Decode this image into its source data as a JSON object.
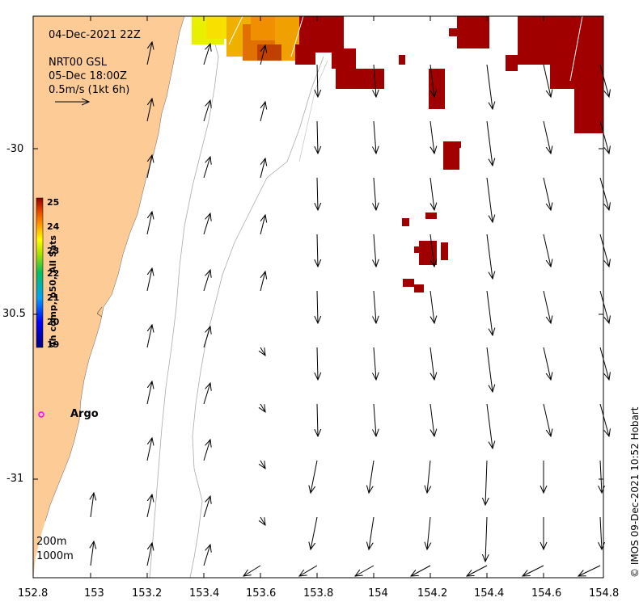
{
  "map": {
    "timestamp": "04-Dec-2021 22Z",
    "currents_source": "NRT00 GSL",
    "currents_time": "05-Dec 18:00Z",
    "vector_scale_label": "0.5m/s (1kt 6h)",
    "marker_label": "Argo",
    "depth_labels": [
      "200m",
      "1000m"
    ],
    "credit": "© IMOS 09-Dec-2021 10:52 Hobart",
    "x_ticks": [
      "152.8",
      "153",
      "153.2",
      "153.4",
      "153.6",
      "153.8",
      "154",
      "154.2",
      "154.4",
      "154.6",
      "154.8"
    ],
    "y_ticks": [
      "-30",
      "30.5",
      "-31"
    ]
  },
  "colorbar": {
    "title": "4h comp, p50, All Sats",
    "ticks": [
      "25",
      "24",
      "23",
      "22",
      "21",
      "20",
      "19"
    ]
  },
  "colors": {
    "land": "#fccb96",
    "sst_max": "#a00000",
    "argo_marker": "#ff00ff"
  }
}
